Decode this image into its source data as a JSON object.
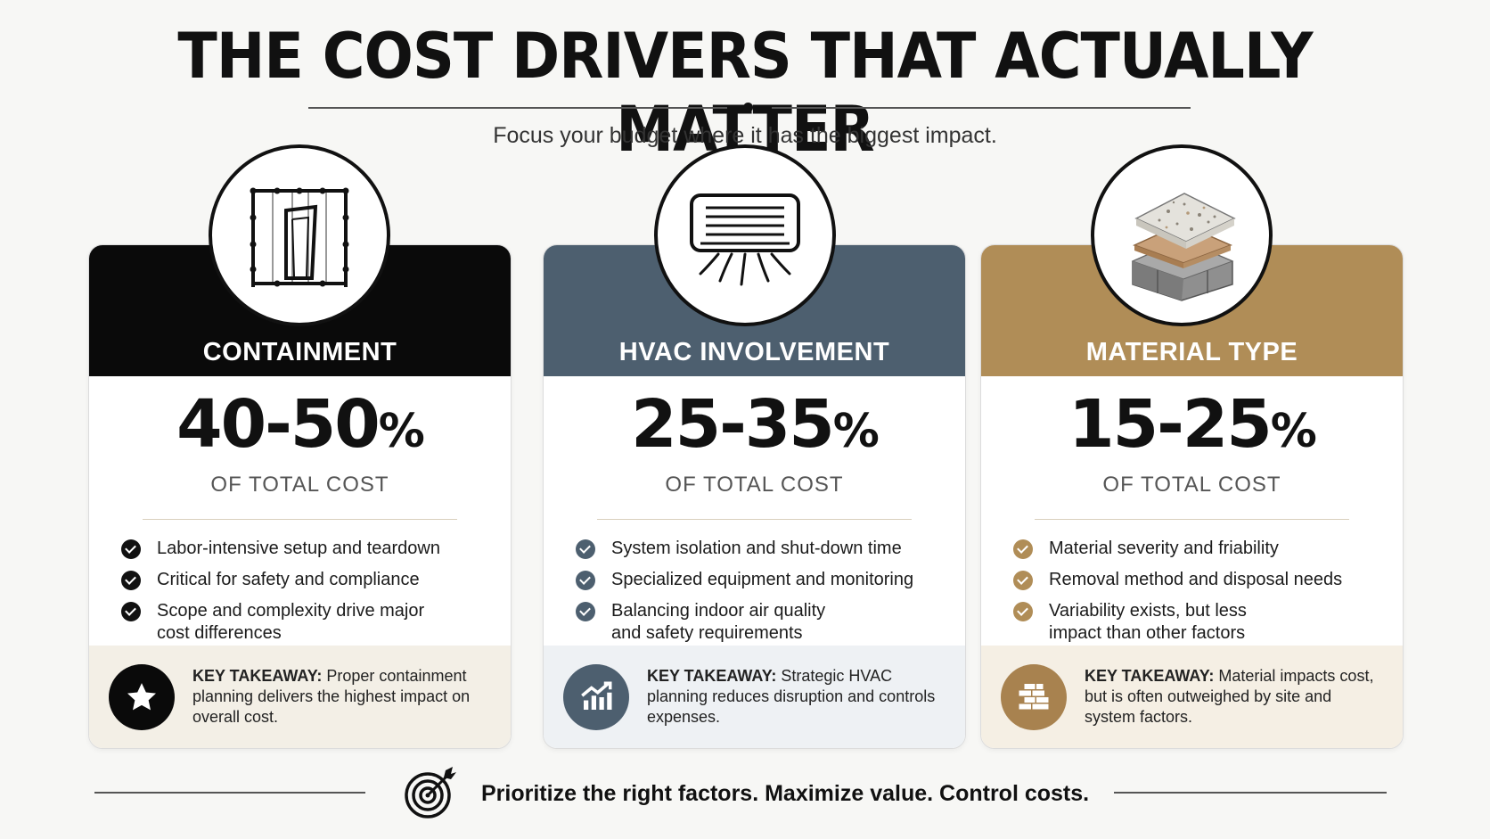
{
  "header": {
    "title": "THE COST DRIVERS THAT ACTUALLY MATTER",
    "subtitle": "Focus your budget where it has the biggest impact."
  },
  "cards": [
    {
      "label": "CONTAINMENT",
      "stat": "40-50",
      "stat_unit": "%",
      "stat_sub": "OF TOTAL COST",
      "icon": "containment-frame-icon",
      "header_color": "#0a0a0a",
      "check_color": "#111111",
      "points": [
        "Labor-intensive setup and teardown",
        "Critical for safety and compliance",
        "Scope and complexity drive major cost differences"
      ],
      "takeaway_label": "KEY TAKEAWAY:",
      "takeaway_text": "Proper containment planning delivers the highest impact on overall cost.",
      "takeaway_icon": "star-icon",
      "takeaway_bg": "#f3efe6"
    },
    {
      "label": "HVAC INVOLVEMENT",
      "stat": "25-35",
      "stat_unit": "%",
      "stat_sub": "OF TOTAL COST",
      "icon": "air-conditioner-icon",
      "header_color": "#4d5f6f",
      "check_color": "#4d5f6f",
      "points": [
        "System isolation and shut-down time",
        "Specialized equipment and monitoring",
        "Balancing indoor air quality and safety requirements"
      ],
      "takeaway_label": "KEY TAKEAWAY:",
      "takeaway_text": "Strategic HVAC planning reduces disruption and controls expenses.",
      "takeaway_icon": "growth-chart-icon",
      "takeaway_bg": "#eef1f4"
    },
    {
      "label": "MATERIAL TYPE",
      "stat": "15-25",
      "stat_unit": "%",
      "stat_sub": "OF TOTAL COST",
      "icon": "material-layers-icon",
      "header_color": "#b08d57",
      "check_color": "#b08d57",
      "points": [
        "Material severity and friability",
        "Removal method and disposal needs",
        "Variability exists, but less impact than other factors"
      ],
      "takeaway_label": "KEY TAKEAWAY:",
      "takeaway_text": "Material impacts cost, but is often outweighed by site and system factors.",
      "takeaway_icon": "bricks-icon",
      "takeaway_bg": "#f5efe4"
    }
  ],
  "footer": {
    "text": "Prioritize the right factors. Maximize value. Control costs.",
    "icon": "target-icon"
  }
}
